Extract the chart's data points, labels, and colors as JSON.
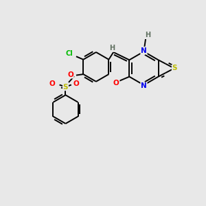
{
  "bg_color": "#e8e8e8",
  "bond_color": "#000000",
  "atom_colors": {
    "N": "#0000ee",
    "S": "#bbbb00",
    "O": "#ff0000",
    "Cl": "#00bb00",
    "H": "#607060",
    "C": "#000000"
  }
}
